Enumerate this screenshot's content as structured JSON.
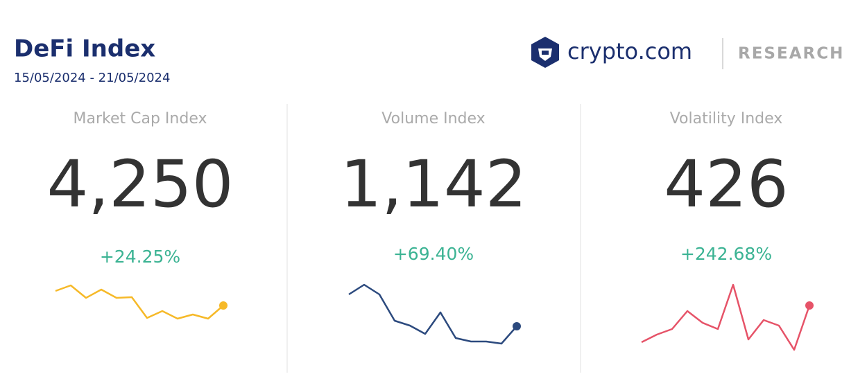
{
  "header": {
    "title": "DeFi Index",
    "date_range": "15/05/2024 - 21/05/2024"
  },
  "brand": {
    "logo_text": "crypto.com",
    "section": "RESEARCH"
  },
  "cards": [
    {
      "label": "Market Cap Index",
      "value": "4,250",
      "change": "+24.25%",
      "color": "#f6b928",
      "sparkline": [
        80,
        88,
        70,
        82,
        70,
        71,
        41,
        51,
        40,
        46,
        40,
        59
      ]
    },
    {
      "label": "Volume Index",
      "value": "1,142",
      "change": "+69.40%",
      "color": "#2c4a7e",
      "sparkline": [
        75,
        89,
        75,
        37,
        30,
        18,
        49,
        12,
        7,
        7,
        4,
        29
      ]
    },
    {
      "label": "Volatility Index",
      "value": "426",
      "change": "+242.68%",
      "color": "#e65368",
      "sparkline": [
        16,
        27,
        35,
        61,
        44,
        35,
        99,
        20,
        48,
        40,
        5,
        69
      ]
    }
  ]
}
